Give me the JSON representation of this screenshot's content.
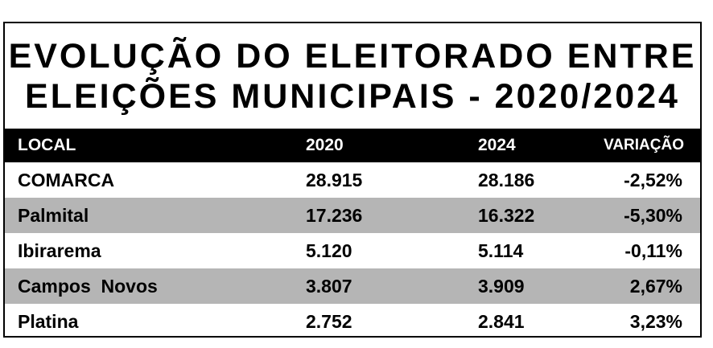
{
  "title": {
    "line1": "EVOLUÇÃO DO ELEITORADO ENTRE",
    "line2": "ELEIÇÕES MUNICIPAIS - 2020/2024"
  },
  "table": {
    "headers": [
      "LOCAL",
      "2020",
      "2024",
      "VARIAÇÃO"
    ],
    "rows": [
      [
        "COMARCA",
        "28.915",
        "28.186",
        "-2,52%"
      ],
      [
        "Palmital",
        "17.236",
        "16.322",
        "-5,30%"
      ],
      [
        "Ibirarema",
        "5.120",
        "5.114",
        "-0,11%"
      ],
      [
        "Campos  Novos",
        "3.807",
        "3.909",
        "2,67%"
      ],
      [
        "Platina",
        "2.752",
        "2.841",
        "3,23%"
      ]
    ]
  },
  "colors": {
    "header_bg": "#000000",
    "header_text": "#ffffff",
    "shaded_row": "#b5b5b5",
    "plain_row": "#ffffff"
  }
}
